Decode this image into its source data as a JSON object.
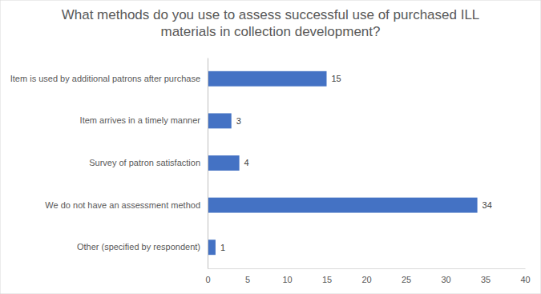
{
  "chart_data": {
    "type": "bar",
    "orientation": "horizontal",
    "title": "What methods do you use to assess successful use of purchased ILL materials in collection development?",
    "categories": [
      "Item is used by additional patrons after purchase",
      "Item arrives in a timely manner",
      "Survey of patron satisfaction",
      "We do not have an assessment method",
      "Other (specified by respondent)"
    ],
    "values": [
      15,
      3,
      4,
      34,
      1
    ],
    "color": "#4472c4",
    "xlim": [
      0,
      40
    ],
    "xticks": [
      0,
      5,
      10,
      15,
      20,
      25,
      30,
      35,
      40
    ],
    "grid": false,
    "data_labels": true
  }
}
